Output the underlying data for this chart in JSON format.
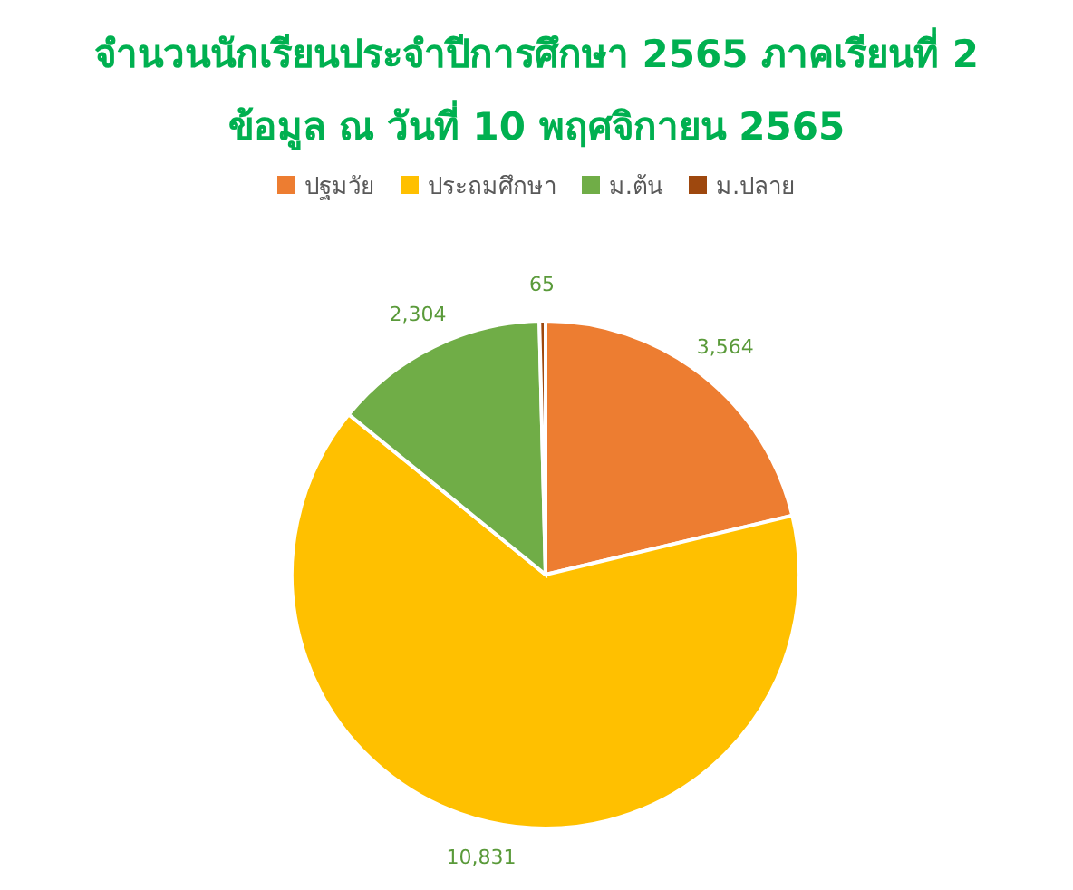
{
  "chart_data": {
    "type": "pie",
    "title": "จำนวนนักเรียนประจำปีการศึกษา 2565 ภาคเรียนที่ 2",
    "subtitle": "ข้อมูล ณ วันที่ 10 พฤศจิกายน 2565",
    "categories": [
      "ปฐมวัย",
      "ประถมศึกษา",
      "ม.ต้น",
      "ม.ปลาย"
    ],
    "values": [
      3564,
      10831,
      2304,
      65
    ],
    "value_labels": [
      "3,564",
      "10,831",
      "2,304",
      "65"
    ],
    "colors": [
      "#ed7d31",
      "#ffc000",
      "#70ad47",
      "#9e480e"
    ],
    "legend": "top"
  }
}
